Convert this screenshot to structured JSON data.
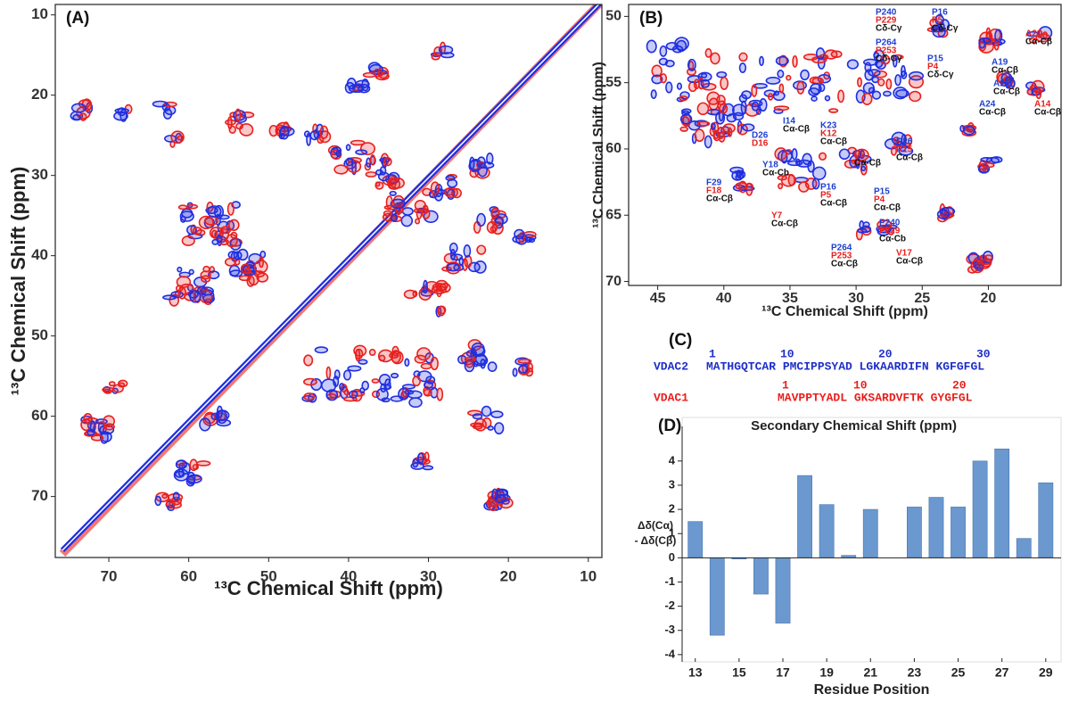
{
  "chart_data": [
    {
      "type": "contour",
      "panel_label": "(A)",
      "xlabel": "¹³C Chemical Shift (ppm)",
      "ylabel": "¹³C Chemical Shift (ppm)",
      "xlim": [
        76.7,
        8.3
      ],
      "ylim": [
        8.7,
        77.6
      ],
      "xticks": [
        70,
        60,
        50,
        40,
        30,
        20,
        10
      ],
      "yticks": [
        10,
        20,
        30,
        40,
        50,
        60,
        70
      ],
      "colors": [
        "#1f2fe0",
        "#e8201e"
      ]
    },
    {
      "type": "contour",
      "panel_label": "(B)",
      "xlabel": "¹³C Chemical Shift (ppm)",
      "ylabel": "¹³C Chemical Shift (ppm)",
      "xlim": [
        47.2,
        14.5
      ],
      "ylim": [
        49.1,
        70.3
      ],
      "xticks": [
        45,
        40,
        35,
        30,
        25,
        20
      ],
      "yticks": [
        50,
        55,
        60,
        65,
        70
      ],
      "colors": [
        "#1f2fe0",
        "#e8201e"
      ],
      "annotations": [
        {
          "lines": [
            {
              "text": "P240",
              "color": "#1f3fd0"
            },
            {
              "text": "P229",
              "color": "#e8201e"
            },
            {
              "text": "Cδ-Cγ",
              "color": "#111111"
            }
          ]
        },
        {
          "lines": [
            {
              "text": "P16",
              "color": "#1f3fd0"
            },
            {
              "text": "P5",
              "color": "#e8201e"
            },
            {
              "text": "Cδ-Cγ",
              "color": "#111111"
            }
          ]
        },
        {
          "lines": [
            {
              "text": "P264",
              "color": "#1f3fd0"
            },
            {
              "text": "P253",
              "color": "#e8201e"
            },
            {
              "text": "Cδ-Cγ",
              "color": "#111111"
            }
          ]
        },
        {
          "lines": [
            {
              "text": "P15",
              "color": "#1f3fd0"
            },
            {
              "text": "P4",
              "color": "#e8201e"
            },
            {
              "text": "Cδ-Cγ",
              "color": "#111111"
            }
          ]
        },
        {
          "lines": [
            {
              "text": "A2",
              "color": "#e8201e"
            },
            {
              "text": "Cα-Cβ",
              "color": "#111111"
            }
          ]
        },
        {
          "lines": [
            {
              "text": "A19",
              "color": "#1f3fd0"
            },
            {
              "text": "Cα-Cβ",
              "color": "#111111"
            }
          ]
        },
        {
          "lines": [
            {
              "text": "A25",
              "color": "#1f3fd0"
            },
            {
              "text": "Cα-Cβ",
              "color": "#111111"
            }
          ]
        },
        {
          "lines": [
            {
              "text": "A24",
              "color": "#1f3fd0"
            },
            {
              "text": "Cα-Cβ",
              "color": "#111111"
            }
          ]
        },
        {
          "lines": [
            {
              "text": "A14",
              "color": "#e8201e"
            },
            {
              "text": "Cα-Cβ",
              "color": "#111111"
            }
          ]
        },
        {
          "lines": [
            {
              "text": "I14",
              "color": "#1f3fd0"
            },
            {
              "text": "Cα-Cβ",
              "color": "#111111"
            }
          ]
        },
        {
          "lines": [
            {
              "text": "D26",
              "color": "#1f3fd0"
            },
            {
              "text": "D16",
              "color": "#e8201e"
            }
          ]
        },
        {
          "lines": [
            {
              "text": "K23",
              "color": "#1f3fd0"
            },
            {
              "text": "K12",
              "color": "#e8201e"
            },
            {
              "text": "Cα-Cβ",
              "color": "#111111"
            }
          ]
        },
        {
          "lines": [
            {
              "text": "V3",
              "color": "#e8201e"
            },
            {
              "text": "Cα-Cβ",
              "color": "#111111"
            }
          ]
        },
        {
          "lines": [
            {
              "text": "R26",
              "color": "#1f3fd0"
            },
            {
              "text": "R15",
              "color": "#e8201e"
            },
            {
              "text": "Cα-Cβ",
              "color": "#111111"
            }
          ]
        },
        {
          "lines": [
            {
              "text": "Y18",
              "color": "#1f3fd0"
            },
            {
              "text": "Cα-Cb",
              "color": "#111111"
            }
          ]
        },
        {
          "lines": [
            {
              "text": "F29",
              "color": "#1f3fd0"
            },
            {
              "text": "F18",
              "color": "#e8201e"
            },
            {
              "text": "Cα-Cβ",
              "color": "#111111"
            }
          ]
        },
        {
          "lines": [
            {
              "text": "P16",
              "color": "#1f3fd0"
            },
            {
              "text": "P5",
              "color": "#e8201e"
            },
            {
              "text": "Cα-Cβ",
              "color": "#111111"
            }
          ]
        },
        {
          "lines": [
            {
              "text": "P15",
              "color": "#1f3fd0"
            },
            {
              "text": "P4",
              "color": "#e8201e"
            },
            {
              "text": "Cα-Cβ",
              "color": "#111111"
            }
          ]
        },
        {
          "lines": [
            {
              "text": "Y7",
              "color": "#e8201e"
            },
            {
              "text": "Cα-Cβ",
              "color": "#111111"
            }
          ]
        },
        {
          "lines": [
            {
              "text": "P240",
              "color": "#1f3fd0"
            },
            {
              "text": "P229",
              "color": "#e8201e"
            },
            {
              "text": "Cα-Cb",
              "color": "#111111"
            }
          ]
        },
        {
          "lines": [
            {
              "text": "P264",
              "color": "#1f3fd0"
            },
            {
              "text": "P253",
              "color": "#e8201e"
            },
            {
              "text": "Cα-Cβ",
              "color": "#111111"
            }
          ]
        },
        {
          "lines": [
            {
              "text": "V17",
              "color": "#e8201e"
            },
            {
              "text": "Cα-Cβ",
              "color": "#111111"
            }
          ]
        }
      ]
    },
    {
      "type": "bar",
      "panel_label": "(D)",
      "title": "Secondary Chemical Shift (ppm)",
      "xlabel": "Residue Position",
      "ylabel": [
        "Δδ(Cα)",
        "- Δδ(Cβ)"
      ],
      "color": "#6a98cf",
      "x": [
        13,
        14,
        15,
        16,
        17,
        18,
        19,
        20,
        21,
        22,
        23,
        24,
        25,
        26,
        27,
        28,
        29
      ],
      "values": [
        1.5,
        -3.2,
        -0.05,
        -1.5,
        -2.7,
        3.4,
        2.2,
        0.1,
        2.0,
        null,
        2.1,
        2.5,
        2.1,
        4.0,
        4.5,
        0.8,
        3.1
      ],
      "xlim": [
        12.4,
        29.7
      ],
      "ylim": [
        -4.3,
        5.8
      ],
      "xticks": [
        13,
        15,
        17,
        19,
        21,
        23,
        25,
        27,
        29
      ],
      "yticks": [
        -4,
        -3,
        -2,
        -1,
        0,
        1,
        2,
        3,
        4
      ]
    }
  ],
  "alignment": {
    "panel_label": "(C)",
    "rows": [
      {
        "name": "VDAC2",
        "color": "#1f2fc8",
        "numbers": [
          "1",
          "10",
          "20",
          "30"
        ],
        "sequence": "MATHGQTCAR PMCIPPSYAD LGKAARDIFN KGFGFGL"
      },
      {
        "name": "VDAC1",
        "color": "#e8201e",
        "numbers": [
          "1",
          "10",
          "20"
        ],
        "sequence": "MAVPPTYADL GKSARDVFTK GYGFGL"
      }
    ]
  }
}
